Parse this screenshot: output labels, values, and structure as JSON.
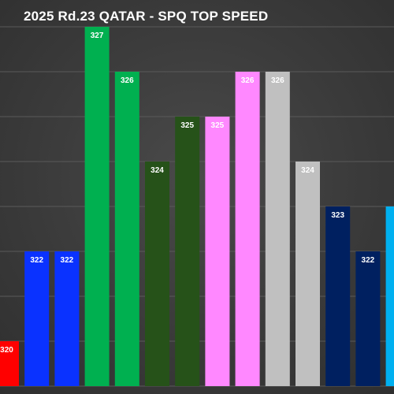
{
  "chart_data": {
    "type": "bar",
    "title": "2025 Rd.23 QATAR - SPQ TOP SPEED",
    "xlabel": "",
    "ylabel": "",
    "ylim": [
      319,
      327
    ],
    "grid": true,
    "categories": [
      "",
      "",
      "",
      "",
      "",
      "",
      "",
      "",
      "",
      "",
      "",
      "",
      "",
      ""
    ],
    "values": [
      320,
      322,
      322,
      327,
      326,
      324,
      325,
      325,
      326,
      326,
      324,
      323,
      322,
      323
    ],
    "data_labels": [
      "320",
      "322",
      "322",
      "327",
      "326",
      "324",
      "325",
      "325",
      "326",
      "326",
      "324",
      "323",
      "322",
      ""
    ],
    "colors": [
      "#ff0000",
      "#0a32ff",
      "#0a32ff",
      "#00b050",
      "#00b050",
      "#265219",
      "#265219",
      "#ff88ff",
      "#ff88ff",
      "#c0c0c0",
      "#c0c0c0",
      "#002060",
      "#002060",
      "#00b0f0"
    ],
    "label_colors": [
      "#ffffff",
      "#ffffff",
      "#ffffff",
      "#ffffff",
      "#ffffff",
      "#ffffff",
      "#ffffff",
      "#ffffff",
      "#ffffff",
      "#ffffff",
      "#ffffff",
      "#ffffff",
      "#ffffff",
      "#ffffff"
    ],
    "background": "#3d3d3d",
    "grid_color": "#5a5a5a"
  }
}
